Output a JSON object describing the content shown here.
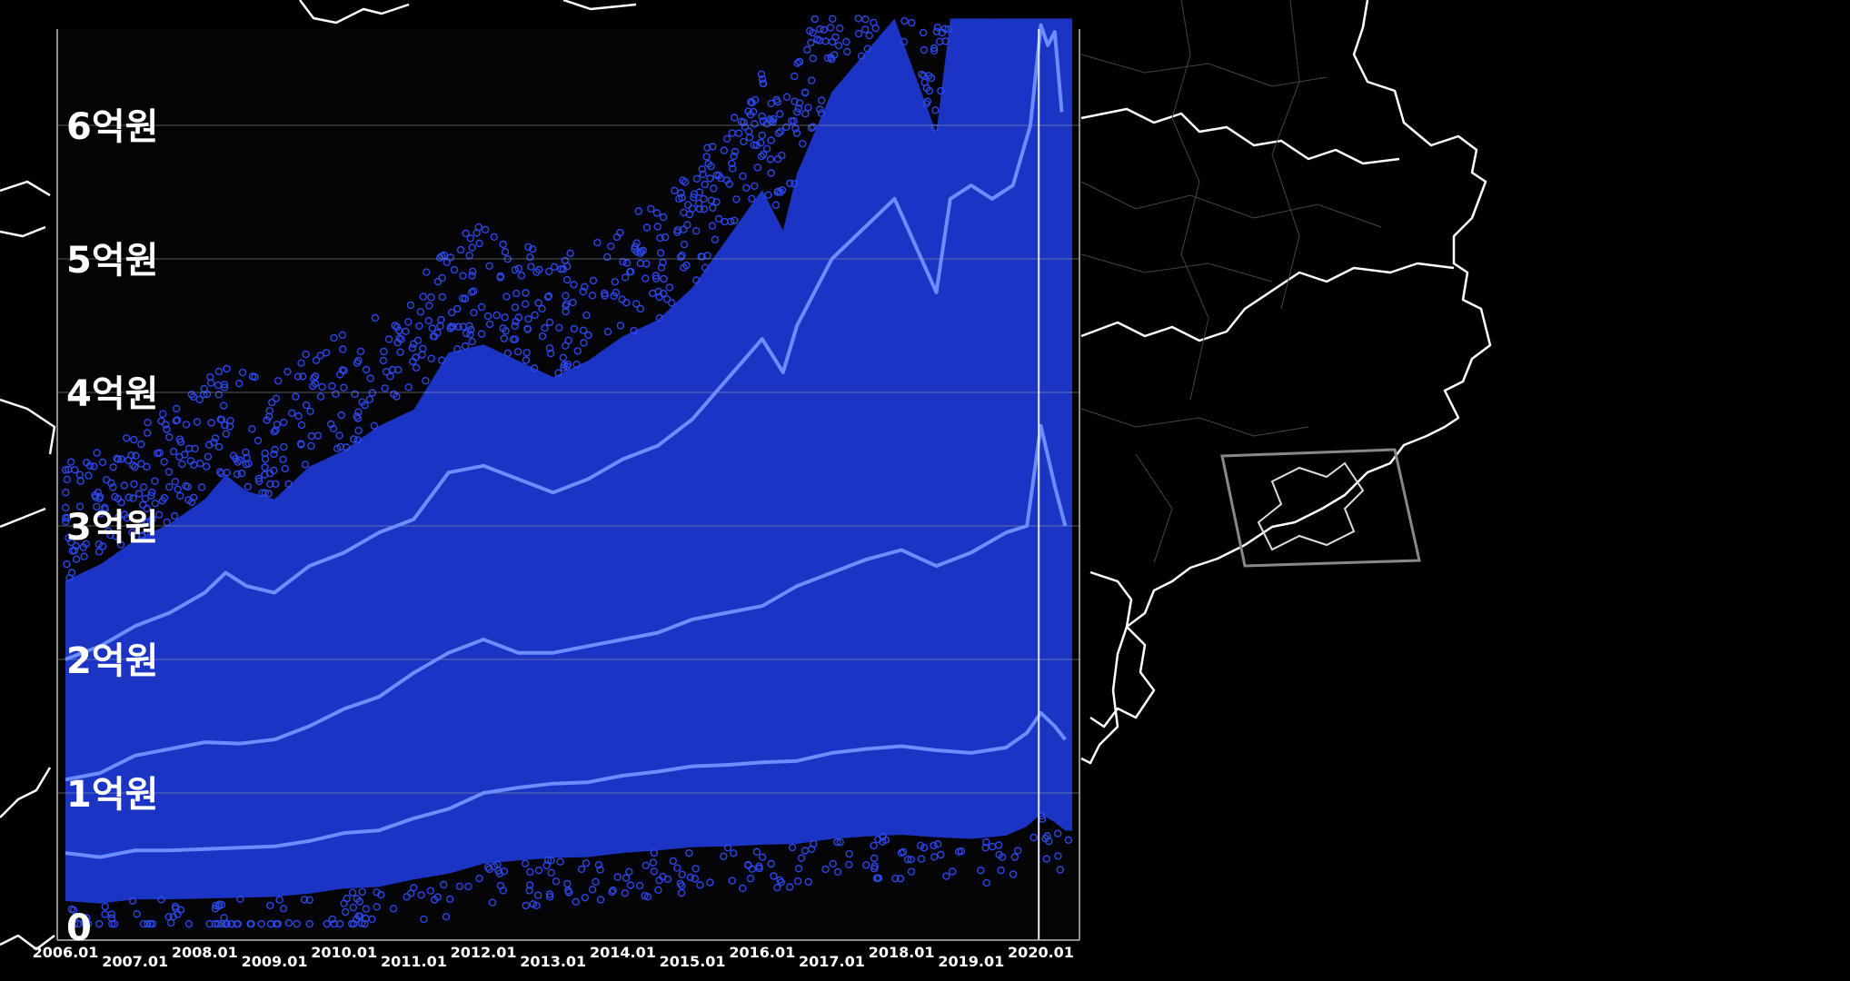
{
  "chart_data": {
    "type": "scatter",
    "title": "",
    "xlabel": "",
    "ylabel": "",
    "y_ticks": [
      {
        "value": 0,
        "label": "0"
      },
      {
        "value": 1,
        "label": "1억원"
      },
      {
        "value": 2,
        "label": "2억원"
      },
      {
        "value": 3,
        "label": "3억원"
      },
      {
        "value": 4,
        "label": "4억원"
      },
      {
        "value": 5,
        "label": "5억원"
      },
      {
        "value": 6,
        "label": "6억원"
      }
    ],
    "x_ticks": [
      {
        "value": 2006.0,
        "label": "2006.01",
        "row": 0
      },
      {
        "value": 2007.0,
        "label": "2007.01",
        "row": 1
      },
      {
        "value": 2008.0,
        "label": "2008.01",
        "row": 0
      },
      {
        "value": 2009.0,
        "label": "2009.01",
        "row": 1
      },
      {
        "value": 2010.0,
        "label": "2010.01",
        "row": 0
      },
      {
        "value": 2011.0,
        "label": "2011.01",
        "row": 1
      },
      {
        "value": 2012.0,
        "label": "2012.01",
        "row": 0
      },
      {
        "value": 2013.0,
        "label": "2013.01",
        "row": 1
      },
      {
        "value": 2014.0,
        "label": "2014.01",
        "row": 0
      },
      {
        "value": 2015.0,
        "label": "2015.01",
        "row": 1
      },
      {
        "value": 2016.0,
        "label": "2016.01",
        "row": 0
      },
      {
        "value": 2017.0,
        "label": "2017.01",
        "row": 1
      },
      {
        "value": 2018.0,
        "label": "2018.01",
        "row": 0
      },
      {
        "value": 2019.0,
        "label": "2019.01",
        "row": 1
      },
      {
        "value": 2020.0,
        "label": "2020.01",
        "row": 0
      }
    ],
    "xlim": [
      2006.0,
      2020.45
    ],
    "ylim": [
      0,
      6.8
    ],
    "grid": true,
    "marker_line_x": 2019.97,
    "series": [
      {
        "x": [
          2006.0,
          2006.5,
          2007.0,
          2007.5,
          2008.0,
          2008.5,
          2009.0,
          2009.5,
          2010.0,
          2010.5,
          2011.0,
          2011.5,
          2012.0,
          2012.5,
          2013.0,
          2013.5,
          2014.0,
          2014.5,
          2015.0,
          2015.5,
          2016.0,
          2016.5,
          2017.0,
          2017.5,
          2018.0,
          2018.5,
          2019.0,
          2019.5,
          2019.8,
          2020.0,
          2020.2,
          2020.35
        ],
        "values": [
          0.55,
          0.52,
          0.57,
          0.57,
          0.58,
          0.59,
          0.6,
          0.64,
          0.7,
          0.72,
          0.81,
          0.88,
          1.0,
          1.04,
          1.07,
          1.08,
          1.13,
          1.16,
          1.2,
          1.21,
          1.23,
          1.24,
          1.3,
          1.33,
          1.35,
          1.32,
          1.3,
          1.34,
          1.45,
          1.6,
          1.5,
          1.4
        ]
      },
      {
        "x": [
          2006.0,
          2006.5,
          2007.0,
          2007.5,
          2008.0,
          2008.5,
          2009.0,
          2009.5,
          2010.0,
          2010.5,
          2011.0,
          2011.5,
          2012.0,
          2012.5,
          2013.0,
          2013.5,
          2014.0,
          2014.5,
          2015.0,
          2015.5,
          2016.0,
          2016.5,
          2017.0,
          2017.5,
          2018.0,
          2018.5,
          2019.0,
          2019.5,
          2019.8,
          2020.0,
          2020.2,
          2020.35
        ],
        "values": [
          1.1,
          1.15,
          1.28,
          1.33,
          1.38,
          1.37,
          1.4,
          1.5,
          1.63,
          1.72,
          1.9,
          2.05,
          2.15,
          2.05,
          2.05,
          2.1,
          2.15,
          2.2,
          2.3,
          2.35,
          2.4,
          2.55,
          2.65,
          2.75,
          2.82,
          2.7,
          2.8,
          2.95,
          3.0,
          3.75,
          3.3,
          3.0
        ]
      },
      {
        "x": [
          2006.0,
          2006.5,
          2007.0,
          2007.5,
          2008.0,
          2008.3,
          2008.6,
          2009.0,
          2009.5,
          2010.0,
          2010.5,
          2011.0,
          2011.5,
          2012.0,
          2012.5,
          2013.0,
          2013.5,
          2014.0,
          2014.5,
          2015.0,
          2015.5,
          2016.0,
          2016.3,
          2016.5,
          2017.0,
          2017.5,
          2017.9,
          2018.2,
          2018.5,
          2018.7,
          2019.0,
          2019.3,
          2019.6,
          2019.85,
          2020.0,
          2020.1,
          2020.2,
          2020.3
        ],
        "values": [
          2.0,
          2.1,
          2.25,
          2.35,
          2.5,
          2.65,
          2.55,
          2.5,
          2.7,
          2.8,
          2.95,
          3.05,
          3.4,
          3.45,
          3.35,
          3.25,
          3.35,
          3.5,
          3.6,
          3.8,
          4.1,
          4.4,
          4.15,
          4.5,
          5.0,
          5.25,
          5.45,
          5.1,
          4.75,
          5.45,
          5.55,
          5.45,
          5.55,
          6.0,
          6.75,
          6.6,
          6.7,
          6.1
        ]
      }
    ]
  }
}
